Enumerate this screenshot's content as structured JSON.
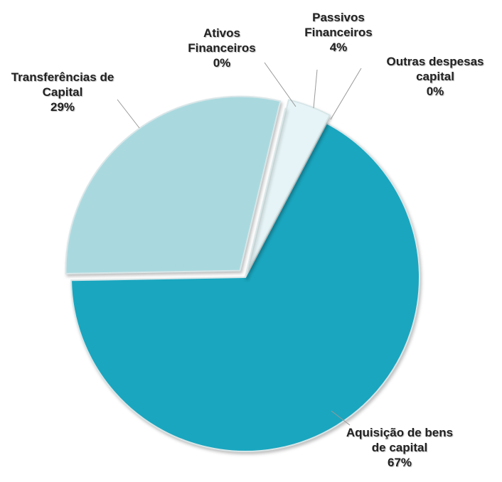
{
  "chart_data": {
    "type": "pie",
    "categories": [
      "Transferências de Capital",
      "Ativos Financeiros",
      "Passivos Financeiros",
      "Outras despesas capital",
      "Aquisição de bens de capital"
    ],
    "values": [
      29,
      0,
      4,
      0,
      67
    ],
    "value_labels": [
      "29%",
      "0%",
      "4%",
      "0%",
      "67%"
    ],
    "colors": [
      "#a9d9df",
      "#ffffff",
      "#e6f4f7",
      "#ffffff",
      "#1aa6bf"
    ]
  }
}
